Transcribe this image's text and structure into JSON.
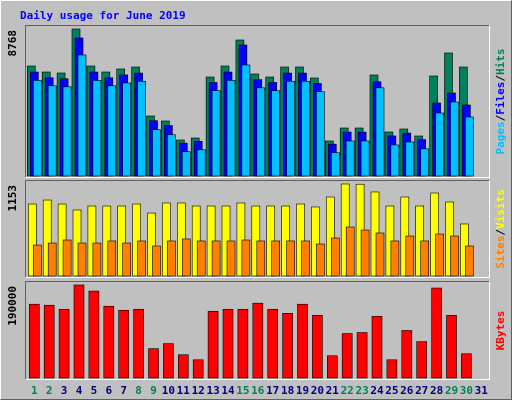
{
  "chart_data": [
    {
      "type": "bar",
      "title": "Daily usage for June 2019",
      "title_color": "#0000ff",
      "legend_separator": "/",
      "ylim": [
        0,
        8768
      ],
      "yticks": [
        8768
      ],
      "series": [
        {
          "name": "Hits",
          "color": "#00805c",
          "values": [
            6561,
            6203,
            6144,
            8768,
            6561,
            6203,
            6383,
            6502,
            3579,
            3281,
            2147,
            2267,
            5905,
            6561,
            8112,
            6084,
            5905,
            6502,
            6502,
            5845,
            2088,
            2863,
            2863,
            6025,
            2625,
            2804,
            2386,
            5965,
            7337,
            6502,
            null
          ]
        },
        {
          "name": "Files",
          "color": "#0000ff",
          "values": [
            6200,
            5860,
            5800,
            8232,
            6200,
            5860,
            6030,
            6140,
            3300,
            3010,
            1960,
            2070,
            5580,
            6200,
            7814,
            5750,
            5580,
            6140,
            6140,
            5520,
            1900,
            2620,
            2620,
            5620,
            2390,
            2560,
            2170,
            4354,
            4951,
            4235,
            null
          ]
        },
        {
          "name": "Pages",
          "color": "#00c0ff",
          "values": [
            5700,
            5380,
            5320,
            7218,
            5700,
            5380,
            5550,
            5650,
            2760,
            2460,
            1450,
            1560,
            5090,
            5700,
            6621,
            5260,
            5090,
            5650,
            5650,
            5030,
            1390,
            2090,
            2090,
            5260,
            1850,
            2030,
            1620,
            3758,
            4414,
            3519,
            null
          ]
        }
      ]
    },
    {
      "type": "bar",
      "ylim": [
        0,
        1153
      ],
      "yticks": [
        1153
      ],
      "series": [
        {
          "name": "Visits",
          "color": "#ffff00",
          "values": [
            902,
            952,
            902,
            827,
            877,
            877,
            877,
            902,
            789,
            915,
            915,
            877,
            877,
            877,
            915,
            877,
            877,
            877,
            902,
            865,
            990,
            1153,
            1150,
            1053,
            877,
            990,
            877,
            1040,
            927,
            652,
            null
          ]
        },
        {
          "name": "Sites",
          "color": "#ff8000",
          "values": [
            388,
            413,
            451,
            413,
            413,
            439,
            413,
            439,
            376,
            439,
            464,
            439,
            439,
            439,
            451,
            439,
            439,
            439,
            439,
            401,
            476,
            614,
            576,
            539,
            439,
            501,
            439,
            526,
            501,
            376,
            null
          ]
        }
      ]
    },
    {
      "type": "bar",
      "ylim": [
        0,
        190000
      ],
      "yticks": [
        190000
      ],
      "categories": [
        "1",
        "2",
        "3",
        "4",
        "5",
        "6",
        "7",
        "8",
        "9",
        "10",
        "11",
        "12",
        "13",
        "14",
        "15",
        "16",
        "17",
        "18",
        "19",
        "20",
        "21",
        "22",
        "23",
        "24",
        "25",
        "26",
        "27",
        "28",
        "29",
        "30",
        "31"
      ],
      "label_color": "#000080",
      "highlight_color": "#00805c",
      "highlight": [
        "1",
        "2",
        "8",
        "9",
        "15",
        "16",
        "22",
        "23",
        "29",
        "30"
      ],
      "series": [
        {
          "name": "KBytes",
          "color": "#ff0000",
          "values": [
            150745,
            148680,
            140420,
            190000,
            177590,
            146615,
            138355,
            140420,
            59885,
            70210,
            47495,
            37170,
            136290,
            140420,
            140420,
            152810,
            140420,
            132160,
            150745,
            128030,
            45430,
            90860,
            92925,
            125965,
            37170,
            97055,
            74340,
            183785,
            128030,
            49560,
            null
          ]
        }
      ]
    }
  ]
}
